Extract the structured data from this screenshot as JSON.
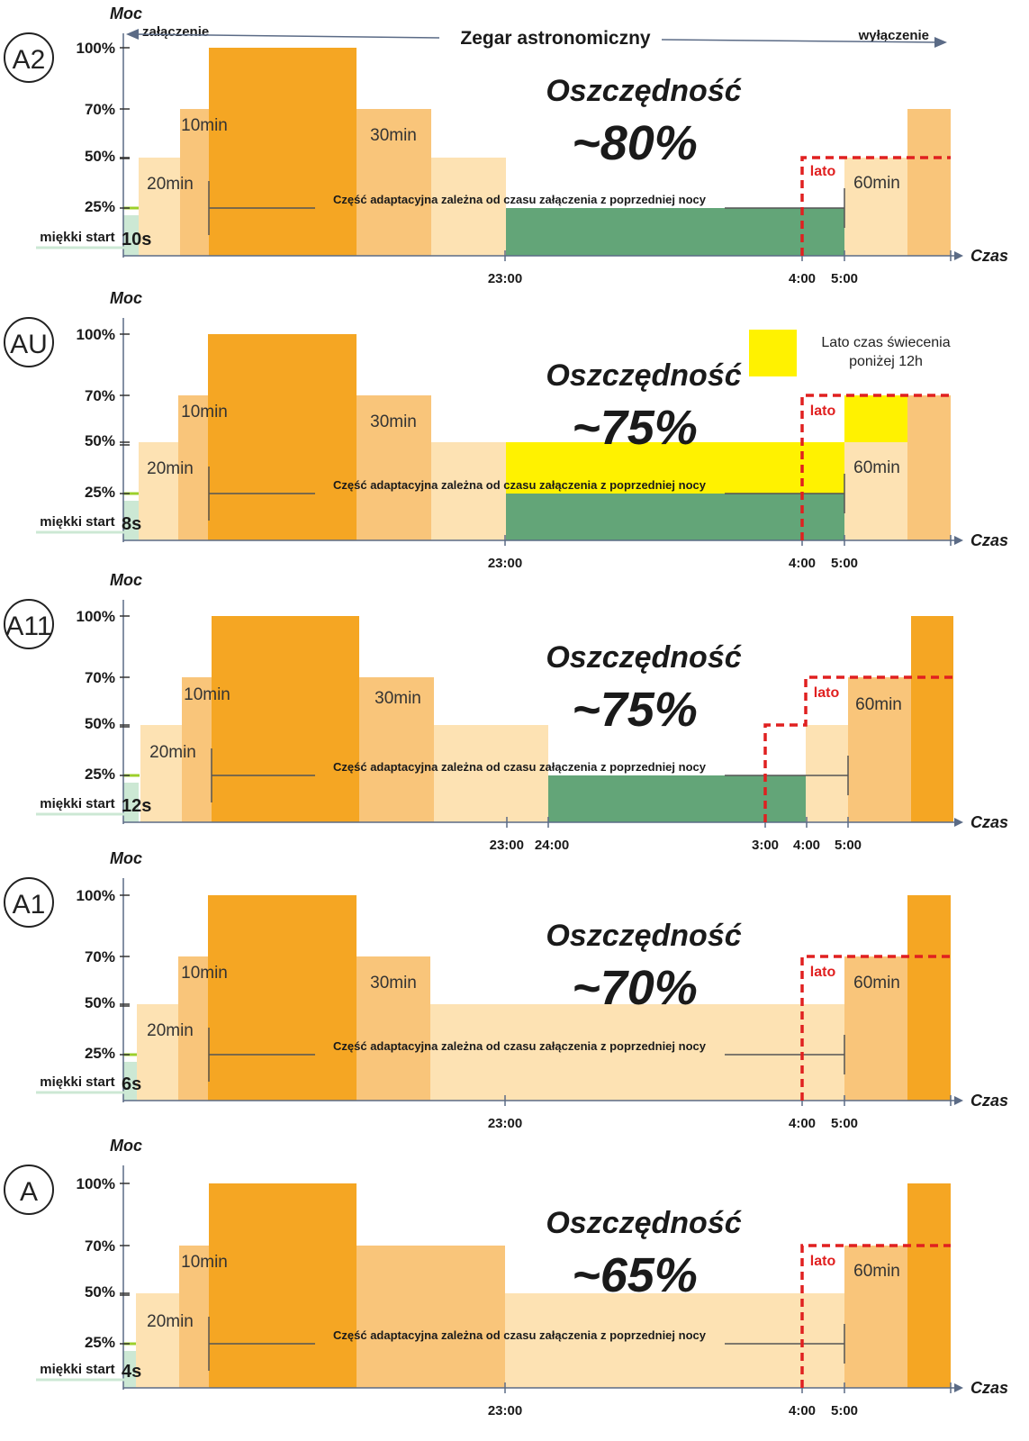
{
  "header": {
    "title": "Zegar astronomiczny",
    "left_label": "załączenie",
    "right_label": "wyłączenie"
  },
  "colors": {
    "orange": "#f5a623",
    "mid_orange": "#f9c57a",
    "light_orange": "#fde2b3",
    "green": "#63a578",
    "soft_green": "#cce8d4",
    "yellow": "#fff200",
    "lime": "#9ccf2b",
    "summer_line": "#e02020",
    "axis": "#5b6b86"
  },
  "chart_data": [
    {
      "id": "A2",
      "badge": "A2",
      "type": "step",
      "y_label": "Moc",
      "x_label": "Czas",
      "y_ticks": [
        "100%",
        "70%",
        "50%",
        "25%"
      ],
      "x_ticks": [
        "23:00",
        "4:00",
        "5:00"
      ],
      "savings_title": "Oszczędność",
      "savings_value": "~80%",
      "soft_start_label": "miękki start",
      "soft_start_value": "10s",
      "adaptive_text": "Część adaptacyjna zależna od czasu załączenia z poprzedniej nocy",
      "summer_label": "lato",
      "durations": [
        "20min",
        "10min",
        "30min",
        "60min"
      ],
      "segments": [
        {
          "power": 50,
          "color": "light_orange",
          "label": "20min"
        },
        {
          "power": 70,
          "color": "mid_orange",
          "label": "10min"
        },
        {
          "power": 100,
          "color": "orange"
        },
        {
          "power": 70,
          "color": "mid_orange",
          "label": "30min"
        },
        {
          "power": 50,
          "color": "light_orange"
        },
        {
          "power": 25,
          "color": "green",
          "from": "",
          "to": "5:00"
        },
        {
          "power": 50,
          "color": "light_orange",
          "from": "5:00",
          "label": "60min"
        },
        {
          "power": 70,
          "color": "mid_orange"
        }
      ],
      "summer_power": 50
    },
    {
      "id": "AU",
      "badge": "AU",
      "type": "step",
      "y_label": "Moc",
      "x_label": "Czas",
      "y_ticks": [
        "100%",
        "70%",
        "50%",
        "25%"
      ],
      "x_ticks": [
        "23:00",
        "4:00",
        "5:00"
      ],
      "savings_title": "Oszczędność",
      "savings_value": "~75%",
      "soft_start_label": "miękki start",
      "soft_start_value": "8s",
      "adaptive_text": "Część adaptacyjna zależna od czasu załączenia z poprzedniej nocy",
      "summer_label": "lato",
      "legend_text": "Lato czas świecenia poniżej 12h",
      "durations": [
        "20min",
        "10min",
        "30min",
        "60min"
      ],
      "summer_power": 70
    },
    {
      "id": "A11",
      "badge": "A11",
      "type": "step",
      "y_label": "Moc",
      "x_label": "Czas",
      "y_ticks": [
        "100%",
        "70%",
        "50%",
        "25%"
      ],
      "x_ticks": [
        "23:00",
        "24:00",
        "3:00",
        "4:00",
        "5:00"
      ],
      "savings_title": "Oszczędność",
      "savings_value": "~75%",
      "soft_start_label": "miękki start",
      "soft_start_value": "12s",
      "adaptive_text": "Część adaptacyjna zależna od czasu załączenia z poprzedniej nocy",
      "summer_label": "lato",
      "durations": [
        "20min",
        "10min",
        "30min",
        "60min"
      ],
      "summer_power": 70
    },
    {
      "id": "A1",
      "badge": "A1",
      "type": "step",
      "y_label": "Moc",
      "x_label": "Czas",
      "y_ticks": [
        "100%",
        "70%",
        "50%",
        "25%"
      ],
      "x_ticks": [
        "23:00",
        "4:00",
        "5:00"
      ],
      "savings_title": "Oszczędność",
      "savings_value": "~70%",
      "soft_start_label": "miękki start",
      "soft_start_value": "6s",
      "adaptive_text": "Część adaptacyjna zależna od czasu załączenia z poprzedniej nocy",
      "summer_label": "lato",
      "durations": [
        "20min",
        "10min",
        "30min",
        "60min"
      ],
      "summer_power": 70
    },
    {
      "id": "A",
      "badge": "A",
      "type": "step",
      "y_label": "Moc",
      "x_label": "Czas",
      "y_ticks": [
        "100%",
        "70%",
        "50%",
        "25%"
      ],
      "x_ticks": [
        "23:00",
        "4:00",
        "5:00"
      ],
      "savings_title": "Oszczędność",
      "savings_value": "~65%",
      "soft_start_label": "miękki start",
      "soft_start_value": "4s",
      "adaptive_text": "Część adaptacyjna zależna od czasu załączenia z poprzedniej nocy",
      "summer_label": "lato",
      "durations": [
        "20min",
        "10min",
        "60min"
      ],
      "summer_power": 70
    }
  ]
}
